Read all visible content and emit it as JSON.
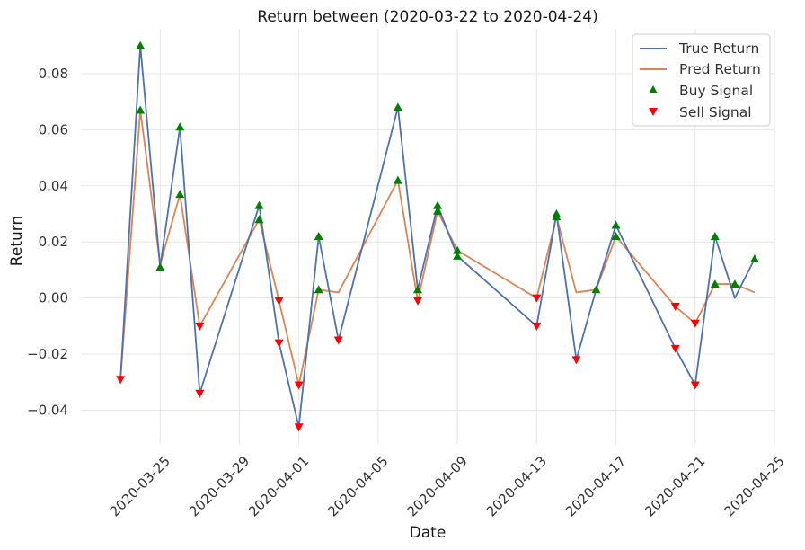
{
  "chart_data": {
    "type": "line",
    "title": "Return between (2020-03-22 to 2020-04-24)",
    "xlabel": "Date",
    "ylabel": "Return",
    "xlim": [
      "2020-03-21",
      "2020-04-25"
    ],
    "ylim": [
      -0.052,
      0.096
    ],
    "yticks": [
      -0.04,
      -0.02,
      0.0,
      0.02,
      0.04,
      0.06,
      0.08
    ],
    "ytick_labels": [
      "−0.04",
      "−0.02",
      "0.00",
      "0.02",
      "0.04",
      "0.06",
      "0.08"
    ],
    "xticks": [
      "2020-03-25",
      "2020-03-29",
      "2020-04-01",
      "2020-04-05",
      "2020-04-09",
      "2020-04-13",
      "2020-04-17",
      "2020-04-21",
      "2020-04-25"
    ],
    "grid": true,
    "legend_position": "top-right",
    "series": [
      {
        "name": "True Return",
        "kind": "line",
        "color": "#4c72b0",
        "points": [
          [
            "2020-03-23",
            -0.029
          ],
          [
            "2020-03-24",
            0.09
          ],
          [
            "2020-03-25",
            0.011
          ],
          [
            "2020-03-26",
            0.061
          ],
          [
            "2020-03-27",
            -0.034
          ],
          [
            "2020-03-30",
            0.033
          ],
          [
            "2020-03-31",
            -0.016
          ],
          [
            "2020-04-01",
            -0.046
          ],
          [
            "2020-04-02",
            0.022
          ],
          [
            "2020-04-03",
            -0.015
          ],
          [
            "2020-04-06",
            0.068
          ],
          [
            "2020-04-07",
            0.003
          ],
          [
            "2020-04-08",
            0.033
          ],
          [
            "2020-04-09",
            0.015
          ],
          [
            "2020-04-13",
            -0.01
          ],
          [
            "2020-04-14",
            0.03
          ],
          [
            "2020-04-15",
            -0.022
          ],
          [
            "2020-04-16",
            0.003
          ],
          [
            "2020-04-17",
            0.026
          ],
          [
            "2020-04-20",
            -0.018
          ],
          [
            "2020-04-21",
            -0.031
          ],
          [
            "2020-04-22",
            0.022
          ],
          [
            "2020-04-23",
            0.0
          ],
          [
            "2020-04-24",
            0.014
          ]
        ]
      },
      {
        "name": "Pred Return",
        "kind": "line",
        "color": "#dd8452",
        "points": [
          [
            "2020-03-23",
            -0.029
          ],
          [
            "2020-03-24",
            0.067
          ],
          [
            "2020-03-25",
            0.012
          ],
          [
            "2020-03-26",
            0.037
          ],
          [
            "2020-03-27",
            -0.01
          ],
          [
            "2020-03-30",
            0.028
          ],
          [
            "2020-03-31",
            -0.001
          ],
          [
            "2020-04-01",
            -0.031
          ],
          [
            "2020-04-02",
            0.003
          ],
          [
            "2020-04-03",
            0.002
          ],
          [
            "2020-04-06",
            0.042
          ],
          [
            "2020-04-07",
            -0.001
          ],
          [
            "2020-04-08",
            0.031
          ],
          [
            "2020-04-09",
            0.017
          ],
          [
            "2020-04-13",
            0.0
          ],
          [
            "2020-04-14",
            0.029
          ],
          [
            "2020-04-15",
            0.002
          ],
          [
            "2020-04-16",
            0.003
          ],
          [
            "2020-04-17",
            0.022
          ],
          [
            "2020-04-20",
            -0.003
          ],
          [
            "2020-04-21",
            -0.009
          ],
          [
            "2020-04-22",
            0.005
          ],
          [
            "2020-04-23",
            0.005
          ],
          [
            "2020-04-24",
            0.002
          ]
        ]
      },
      {
        "name": "Buy Signal",
        "kind": "scatter",
        "marker": "triangle-up",
        "color": "#008000",
        "points": [
          [
            "2020-03-24",
            0.09
          ],
          [
            "2020-03-24",
            0.067
          ],
          [
            "2020-03-25",
            0.011
          ],
          [
            "2020-03-26",
            0.061
          ],
          [
            "2020-03-26",
            0.037
          ],
          [
            "2020-03-30",
            0.033
          ],
          [
            "2020-03-30",
            0.028
          ],
          [
            "2020-04-02",
            0.022
          ],
          [
            "2020-04-02",
            0.003
          ],
          [
            "2020-04-06",
            0.068
          ],
          [
            "2020-04-06",
            0.042
          ],
          [
            "2020-04-07",
            0.003
          ],
          [
            "2020-04-08",
            0.033
          ],
          [
            "2020-04-08",
            0.031
          ],
          [
            "2020-04-09",
            0.017
          ],
          [
            "2020-04-09",
            0.015
          ],
          [
            "2020-04-14",
            0.03
          ],
          [
            "2020-04-14",
            0.029
          ],
          [
            "2020-04-16",
            0.003
          ],
          [
            "2020-04-17",
            0.026
          ],
          [
            "2020-04-17",
            0.022
          ],
          [
            "2020-04-22",
            0.022
          ],
          [
            "2020-04-22",
            0.005
          ],
          [
            "2020-04-23",
            0.005
          ],
          [
            "2020-04-24",
            0.014
          ]
        ]
      },
      {
        "name": "Sell Signal",
        "kind": "scatter",
        "marker": "triangle-down",
        "color": "#ff0000",
        "points": [
          [
            "2020-03-23",
            -0.029
          ],
          [
            "2020-03-27",
            -0.034
          ],
          [
            "2020-03-27",
            -0.01
          ],
          [
            "2020-03-31",
            -0.016
          ],
          [
            "2020-03-31",
            -0.001
          ],
          [
            "2020-04-01",
            -0.046
          ],
          [
            "2020-04-01",
            -0.031
          ],
          [
            "2020-04-03",
            -0.015
          ],
          [
            "2020-04-07",
            -0.001
          ],
          [
            "2020-04-13",
            -0.01
          ],
          [
            "2020-04-13",
            0.0
          ],
          [
            "2020-04-15",
            -0.022
          ],
          [
            "2020-04-20",
            -0.018
          ],
          [
            "2020-04-20",
            -0.003
          ],
          [
            "2020-04-21",
            -0.031
          ],
          [
            "2020-04-21",
            -0.009
          ]
        ]
      }
    ]
  }
}
